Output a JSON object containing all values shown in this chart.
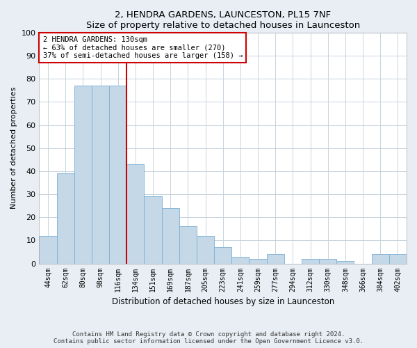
{
  "title": "2, HENDRA GARDENS, LAUNCESTON, PL15 7NF",
  "subtitle": "Size of property relative to detached houses in Launceston",
  "xlabel": "Distribution of detached houses by size in Launceston",
  "ylabel": "Number of detached properties",
  "categories": [
    "44sqm",
    "62sqm",
    "80sqm",
    "98sqm",
    "116sqm",
    "134sqm",
    "151sqm",
    "169sqm",
    "187sqm",
    "205sqm",
    "223sqm",
    "241sqm",
    "259sqm",
    "277sqm",
    "294sqm",
    "312sqm",
    "330sqm",
    "348sqm",
    "366sqm",
    "384sqm",
    "402sqm"
  ],
  "values": [
    12,
    39,
    77,
    77,
    77,
    43,
    29,
    24,
    16,
    12,
    7,
    3,
    2,
    4,
    0,
    2,
    2,
    1,
    0,
    4,
    4
  ],
  "bar_color": "#c5d8e8",
  "bar_edge_color": "#7bafd4",
  "vline_color": "#cc0000",
  "annotation_text": "2 HENDRA GARDENS: 130sqm\n← 63% of detached houses are smaller (270)\n37% of semi-detached houses are larger (158) →",
  "annotation_box_color": "#cc0000",
  "ylim": [
    0,
    100
  ],
  "yticks": [
    0,
    10,
    20,
    30,
    40,
    50,
    60,
    70,
    80,
    90,
    100
  ],
  "footer1": "Contains HM Land Registry data © Crown copyright and database right 2024.",
  "footer2": "Contains public sector information licensed under the Open Government Licence v3.0.",
  "bg_color": "#e8eef4",
  "plot_bg_color": "#ffffff",
  "grid_color": "#c8d4de"
}
